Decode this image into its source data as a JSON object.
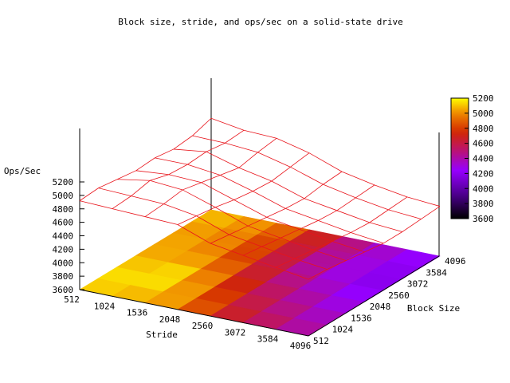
{
  "chart_data": {
    "type": "surface3d",
    "title": "Block size, stride, and ops/sec on a solid-state drive",
    "xlabel": "Stride",
    "ylabel": "Block Size",
    "zlabel": "Ops/Sec",
    "x": [
      512,
      1024,
      1536,
      2048,
      2560,
      3072,
      3584,
      4096
    ],
    "y": [
      512,
      1024,
      1536,
      2048,
      2560,
      3072,
      3584,
      4096
    ],
    "x_ticks": [
      "512",
      "1024",
      "1536",
      "2048",
      "2560",
      "3072",
      "3584",
      "4096"
    ],
    "y_ticks": [
      "512",
      "1024",
      "1536",
      "2048",
      "2560",
      "3072",
      "3584",
      "4096"
    ],
    "z_ticks": [
      "3600",
      "3800",
      "4000",
      "4200",
      "4400",
      "4600",
      "4800",
      "5000",
      "5200"
    ],
    "zlim": [
      3600,
      5200
    ],
    "z": [
      [
        4920,
        4940,
        4900,
        4860,
        4880,
        4840,
        4870,
        4960
      ],
      [
        4900,
        4920,
        4980,
        4900,
        4880,
        4900,
        4860,
        4880
      ],
      [
        4880,
        4900,
        4940,
        4880,
        4820,
        4760,
        4820,
        4860
      ],
      [
        4860,
        4820,
        4780,
        4720,
        4680,
        4660,
        4700,
        4740
      ],
      [
        4680,
        4640,
        4600,
        4560,
        4520,
        4500,
        4540,
        4560
      ],
      [
        4600,
        4560,
        4520,
        4480,
        4440,
        4420,
        4440,
        4460
      ],
      [
        4520,
        4480,
        4440,
        4400,
        4360,
        4340,
        4360,
        4380
      ],
      [
        4440,
        4420,
        4380,
        4340,
        4300,
        4300,
        4320,
        4340
      ]
    ],
    "colorbar": {
      "range": [
        3600,
        5200
      ],
      "ticks": [
        "3600",
        "3800",
        "4000",
        "4200",
        "4400",
        "4600",
        "4800",
        "5000",
        "5200"
      ]
    },
    "mesh_color": "#e8141b"
  }
}
